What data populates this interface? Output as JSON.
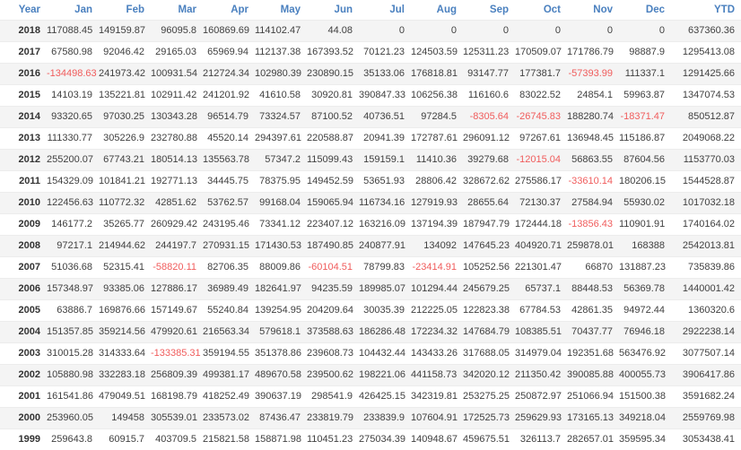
{
  "table": {
    "columns": [
      "Year",
      "Jan",
      "Feb",
      "Mar",
      "Apr",
      "May",
      "Jun",
      "Jul",
      "Aug",
      "Sep",
      "Oct",
      "Nov",
      "Dec",
      "YTD"
    ],
    "rows": [
      {
        "year": "2018",
        "values": [
          117088.45,
          149159.87,
          96095.8,
          160869.69,
          114102.47,
          44.08,
          0,
          0,
          0,
          0,
          0,
          0,
          637360.36
        ]
      },
      {
        "year": "2017",
        "values": [
          67580.98,
          92046.42,
          29165.03,
          65969.94,
          112137.38,
          167393.52,
          70121.23,
          124503.59,
          125311.23,
          170509.07,
          171786.79,
          98887.9,
          1295413.08
        ]
      },
      {
        "year": "2016",
        "values": [
          -134498.63,
          241973.42,
          100931.54,
          212724.34,
          102980.39,
          230890.15,
          35133.06,
          176818.81,
          93147.77,
          177381.7,
          -57393.99,
          111337.1,
          1291425.66
        ]
      },
      {
        "year": "2015",
        "values": [
          14103.19,
          135221.81,
          102911.42,
          241201.92,
          41610.58,
          30920.81,
          390847.33,
          106256.38,
          116160.6,
          83022.52,
          24854.1,
          59963.87,
          1347074.53
        ]
      },
      {
        "year": "2014",
        "values": [
          93320.65,
          97030.25,
          130343.28,
          96514.79,
          73324.57,
          87100.52,
          40736.51,
          97284.5,
          -8305.64,
          -26745.83,
          188280.74,
          -18371.47,
          850512.87
        ]
      },
      {
        "year": "2013",
        "values": [
          111330.77,
          305226.9,
          232780.88,
          45520.14,
          294397.61,
          220588.87,
          20941.39,
          172787.61,
          296091.12,
          97267.61,
          136948.45,
          115186.87,
          2049068.22
        ]
      },
      {
        "year": "2012",
        "values": [
          255200.07,
          67743.21,
          180514.13,
          135563.78,
          57347.2,
          115099.43,
          159159.1,
          11410.36,
          39279.68,
          -12015.04,
          56863.55,
          87604.56,
          1153770.03
        ]
      },
      {
        "year": "2011",
        "values": [
          154329.09,
          101841.21,
          192771.13,
          34445.75,
          78375.95,
          149452.59,
          53651.93,
          28806.42,
          328672.62,
          275586.17,
          -33610.14,
          180206.15,
          1544528.87
        ]
      },
      {
        "year": "2010",
        "values": [
          122456.63,
          110772.32,
          42851.62,
          53762.57,
          99168.04,
          159065.94,
          116734.16,
          127919.93,
          28655.64,
          72130.37,
          27584.94,
          55930.02,
          1017032.18
        ]
      },
      {
        "year": "2009",
        "values": [
          146177.2,
          35265.77,
          260929.42,
          243195.46,
          73341.12,
          223407.12,
          163216.09,
          137194.39,
          187947.79,
          172444.18,
          -13856.43,
          110901.91,
          1740164.02
        ]
      },
      {
        "year": "2008",
        "values": [
          97217.1,
          214944.62,
          244197.7,
          270931.15,
          171430.53,
          187490.85,
          240877.91,
          134092,
          147645.23,
          404920.71,
          259878.01,
          168388,
          2542013.81
        ]
      },
      {
        "year": "2007",
        "values": [
          51036.68,
          52315.41,
          -58820.11,
          82706.35,
          88009.86,
          -60104.51,
          78799.83,
          -23414.91,
          105252.56,
          221301.47,
          66870,
          131887.23,
          735839.86
        ]
      },
      {
        "year": "2006",
        "values": [
          157348.97,
          93385.06,
          127886.17,
          36989.49,
          182641.97,
          94235.59,
          189985.07,
          101294.44,
          245679.25,
          65737.1,
          88448.53,
          56369.78,
          1440001.42
        ]
      },
      {
        "year": "2005",
        "values": [
          63886.7,
          169876.66,
          157149.67,
          55240.84,
          139254.95,
          204209.64,
          30035.39,
          212225.05,
          122823.38,
          67784.53,
          42861.35,
          94972.44,
          1360320.6
        ]
      },
      {
        "year": "2004",
        "values": [
          151357.85,
          359214.56,
          479920.61,
          216563.34,
          579618.1,
          373588.63,
          186286.48,
          172234.32,
          147684.79,
          108385.51,
          70437.77,
          76946.18,
          2922238.14
        ]
      },
      {
        "year": "2003",
        "values": [
          310015.28,
          314333.64,
          -133385.31,
          359194.55,
          351378.86,
          239608.73,
          104432.44,
          143433.26,
          317688.05,
          314979.04,
          192351.68,
          563476.92,
          3077507.14
        ]
      },
      {
        "year": "2002",
        "values": [
          105880.98,
          332283.18,
          256809.39,
          499381.17,
          489670.58,
          239500.62,
          198221.06,
          441158.73,
          342020.12,
          211350.42,
          390085.88,
          400055.73,
          3906417.86
        ]
      },
      {
        "year": "2001",
        "values": [
          161541.86,
          479049.51,
          168198.79,
          418252.49,
          390637.19,
          298541.9,
          426425.15,
          342319.81,
          253275.25,
          250872.97,
          251066.94,
          151500.38,
          3591682.24
        ]
      },
      {
        "year": "2000",
        "values": [
          253960.05,
          149458,
          305539.01,
          233573.02,
          87436.47,
          233819.79,
          233839.9,
          107604.91,
          172525.73,
          259629.93,
          173165.13,
          349218.04,
          2559769.98
        ]
      },
      {
        "year": "1999",
        "values": [
          259643.8,
          60915.7,
          403709.5,
          215821.58,
          158871.98,
          110451.23,
          275034.39,
          140948.67,
          459675.51,
          326113.7,
          282657.01,
          359595.34,
          3053438.41
        ]
      }
    ]
  },
  "colors": {
    "header_text": "#4a80bf",
    "value_text": "#404040",
    "year_text": "#333333",
    "negative_value": "#f05c5c",
    "row_stripe": "#f4f4f4"
  }
}
